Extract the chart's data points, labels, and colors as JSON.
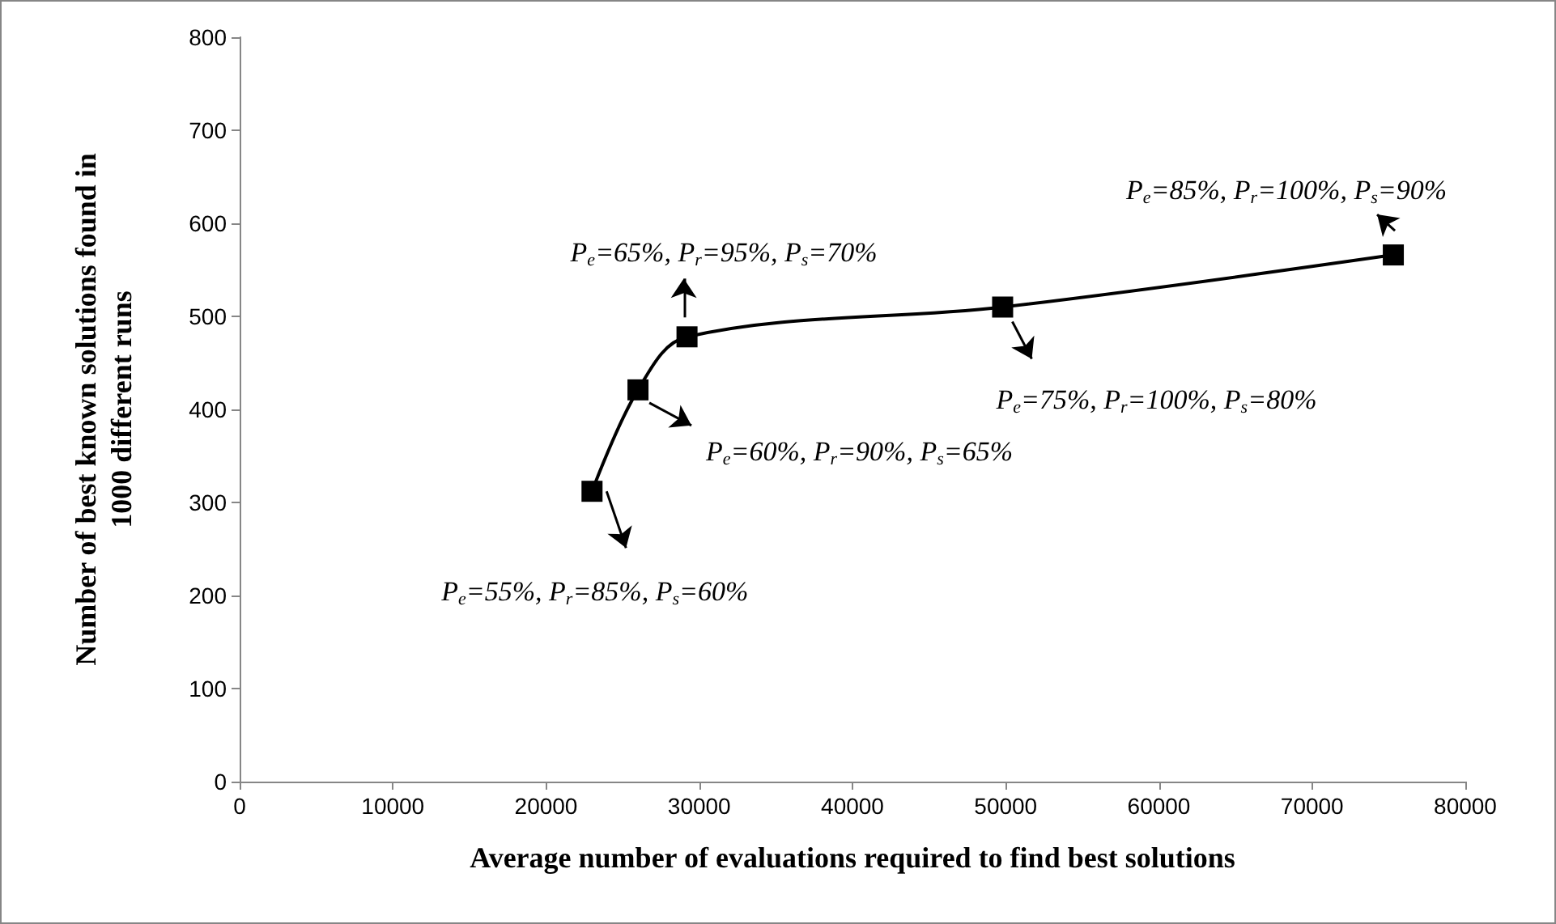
{
  "chart_data": {
    "type": "line",
    "xlabel": "Average number of evaluations required to find best solutions",
    "ylabel": "Number of best known solutions found in\n1000 different runs",
    "x": [
      23000,
      26000,
      29200,
      49800,
      75300
    ],
    "values": [
      312,
      421,
      478,
      510,
      566
    ],
    "color": "#000000",
    "marker": "square",
    "line_style": "solid",
    "grid": false,
    "xlim": [
      0,
      80000
    ],
    "xticks": [
      0,
      10000,
      20000,
      30000,
      40000,
      50000,
      60000,
      70000,
      80000
    ],
    "ylim": [
      0,
      800
    ],
    "yticks": [
      0,
      100,
      200,
      300,
      400,
      500,
      600,
      700,
      800
    ],
    "annotations": [
      {
        "text": "P$_{e}$=55%, P$_{r}$=85%, P$_{s}$=60%",
        "x": 23000,
        "y": 312
      },
      {
        "text": "P$_{e}$=60%, P$_{r}$=90%, P$_{s}$=65%",
        "x": 26000,
        "y": 421
      },
      {
        "text": "P$_{e}$=65%, P$_{r}$=95%, P$_{s}$=70%",
        "x": 29200,
        "y": 478
      },
      {
        "text": "P$_{e}$=75%, P$_{r}$=100%, P$_{s}$=80%",
        "x": 49800,
        "y": 510
      },
      {
        "text": "P$_{e}$=85%, P$_{r}$=100%, P$_{s}$=90%",
        "x": 75300,
        "y": 566
      }
    ]
  }
}
